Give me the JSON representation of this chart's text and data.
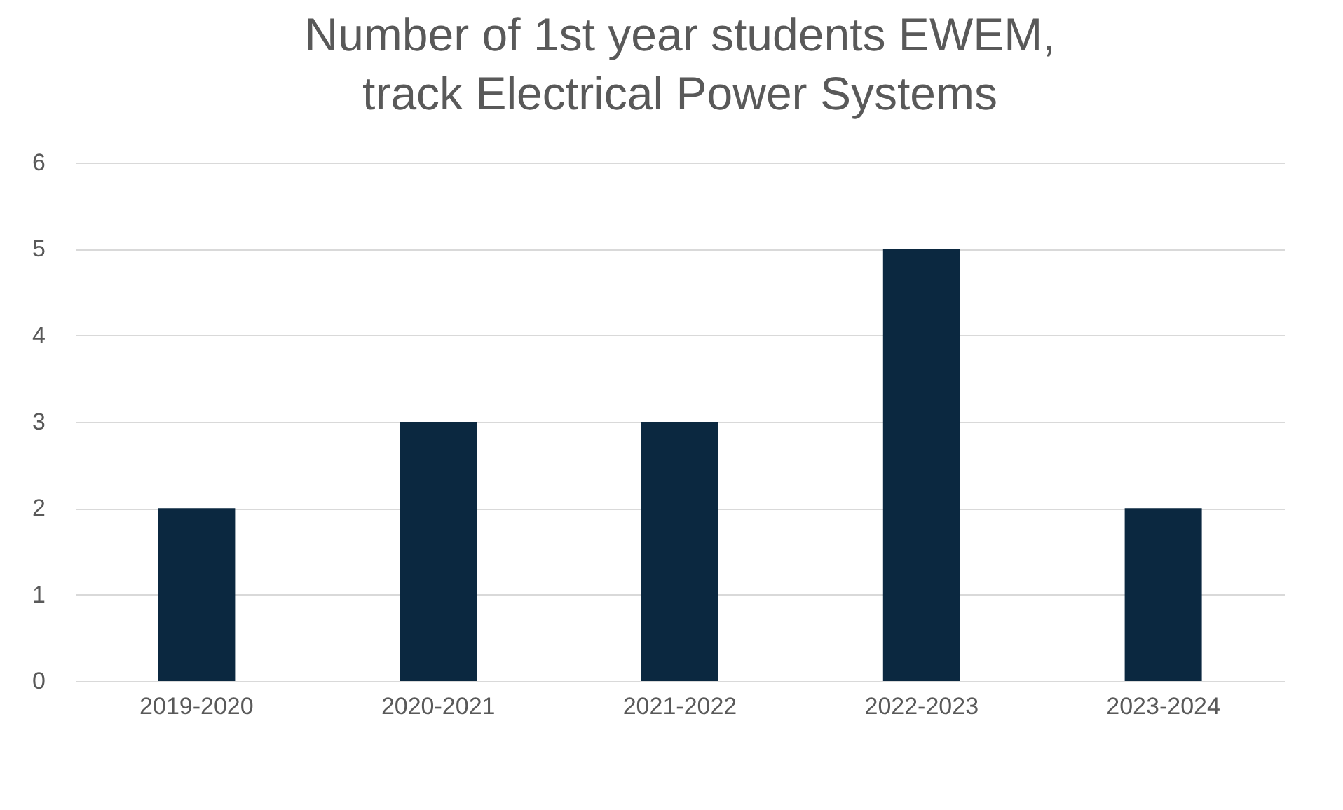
{
  "chart_data": {
    "type": "bar",
    "title": "Number of 1st year students EWEM,\ntrack Electrical Power Systems",
    "categories": [
      "2019-2020",
      "2020-2021",
      "2021-2022",
      "2022-2023",
      "2023-2024"
    ],
    "values": [
      2,
      3,
      3,
      5,
      2
    ],
    "color": "#0b2840",
    "ylim": [
      0,
      6
    ],
    "yticks": [
      0,
      1,
      2,
      3,
      4,
      5,
      6
    ],
    "grid": "y"
  }
}
